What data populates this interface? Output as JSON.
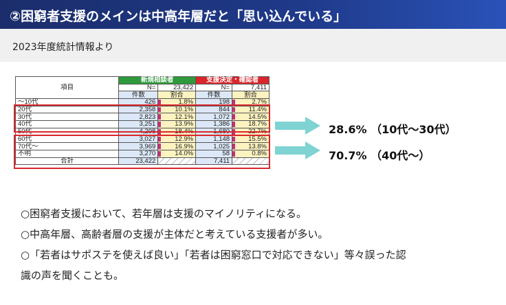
{
  "slide": {
    "title": "②困窮者支援のメインは中高年層だと「思い込んでいる」",
    "subtitle": "2023年度統計情報より"
  },
  "table": {
    "item_header": "項目",
    "group1": {
      "title": "新規相談者",
      "n_label": "N=",
      "n_value": "23,422",
      "col_count": "件数",
      "col_ratio": "割合"
    },
    "group2": {
      "title": "支援決定・確認者",
      "n_label": "N=",
      "n_value": "7,411",
      "col_count": "件数",
      "col_ratio": "割合"
    },
    "rows": [
      {
        "label": "～10代",
        "c1": "426",
        "r1": "1.8%",
        "c2": "198",
        "r2": "2.7%"
      },
      {
        "label": "20代",
        "c1": "2,358",
        "r1": "10.1%",
        "c2": "844",
        "r2": "11.4%"
      },
      {
        "label": "30代",
        "c1": "2,823",
        "r1": "12.1%",
        "c2": "1,072",
        "r2": "14.5%"
      },
      {
        "label": "40代",
        "c1": "3,251",
        "r1": "13.9%",
        "c2": "1,386",
        "r2": "18.7%"
      },
      {
        "label": "50代",
        "c1": "4,298",
        "r1": "18.4%",
        "c2": "1,680",
        "r2": "22.7%"
      },
      {
        "label": "60代",
        "c1": "3,027",
        "r1": "12.9%",
        "c2": "1,148",
        "r2": "15.5%"
      },
      {
        "label": "70代～",
        "c1": "3,969",
        "r1": "16.9%",
        "c2": "1,025",
        "r2": "13.8%"
      },
      {
        "label": "不明",
        "c1": "3,270",
        "r1": "14.0%",
        "c2": "58",
        "r2": "0.8%"
      }
    ],
    "total": {
      "label": "合計",
      "c1": "23,422",
      "c2": "7,411"
    }
  },
  "summary": {
    "young": "28.6% （10代～30代）",
    "middle": "70.7% （40代～）"
  },
  "bullets": [
    "○困窮者支援において、若年層は支援のマイノリティになる。",
    "○中高年層、高齢者層の支援が主体だと考えている支援者が多い。",
    "○「若者はサポステを使えば良い」「若者は困窮窓口で対応できない」等々誤った認",
    "識の声を聞くことも。"
  ],
  "colors": {
    "title_bg": "#1f3a8a",
    "group1": "#2e9a3c",
    "group2": "#d9262c",
    "arrow": "#7fd3d3",
    "highlight": "#d9262c"
  }
}
